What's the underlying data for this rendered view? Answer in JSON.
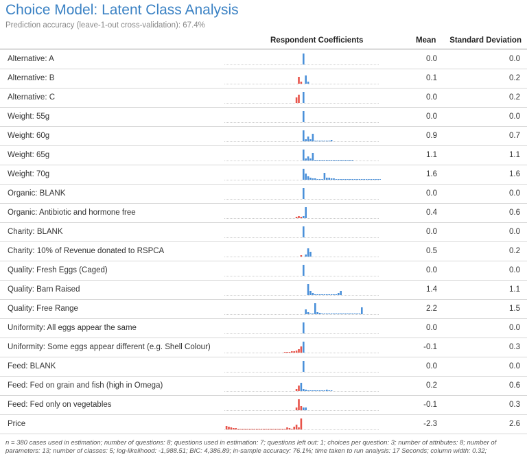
{
  "title": "Choice Model: Latent Class Analysis",
  "subtitle": "Prediction accuracy (leave-1-out cross-validation): 67.4%",
  "headers": {
    "coefficients": "Respondent Coefficients",
    "mean": "Mean",
    "sd": "Standard Deviation"
  },
  "colors": {
    "positive": "#4a90d9",
    "negative": "#e8534a",
    "title": "#3b82c4"
  },
  "rows": [
    {
      "label": "Alternative: A",
      "mean": "0.0",
      "sd": "0.0",
      "bars": [],
      "zero_spike": 16
    },
    {
      "label": "Alternative: B",
      "mean": "0.1",
      "sd": "0.2",
      "neg": [
        [
          -2,
          10
        ],
        [
          -1,
          3
        ]
      ],
      "pos": [
        [
          1,
          12
        ],
        [
          2,
          3
        ]
      ],
      "zero_spike": 0
    },
    {
      "label": "Alternative: C",
      "mean": "0.0",
      "sd": "0.2",
      "neg": [
        [
          -3,
          8
        ],
        [
          -2,
          12
        ]
      ],
      "pos": [
        [
          0,
          16
        ]
      ],
      "zero_spike": 0
    },
    {
      "label": "Weight: 55g",
      "mean": "0.0",
      "sd": "0.0",
      "zero_spike": 16
    },
    {
      "label": "Weight: 60g",
      "mean": "0.9",
      "sd": "0.7",
      "pos": [
        [
          0,
          16
        ],
        [
          1,
          3
        ],
        [
          2,
          7
        ],
        [
          3,
          3
        ],
        [
          4,
          11
        ],
        [
          5,
          1
        ],
        [
          6,
          1
        ],
        [
          7,
          1
        ],
        [
          8,
          1
        ],
        [
          9,
          1
        ],
        [
          10,
          1
        ],
        [
          11,
          1
        ],
        [
          12,
          2
        ]
      ]
    },
    {
      "label": "Weight: 65g",
      "mean": "1.1",
      "sd": "1.1",
      "pos": [
        [
          0,
          16
        ],
        [
          1,
          3
        ],
        [
          2,
          6
        ],
        [
          3,
          3
        ],
        [
          4,
          11
        ],
        [
          5,
          1
        ],
        [
          6,
          1
        ],
        [
          7,
          1
        ],
        [
          8,
          1
        ],
        [
          9,
          1
        ],
        [
          10,
          1
        ],
        [
          11,
          1
        ],
        [
          12,
          1
        ],
        [
          13,
          1
        ],
        [
          14,
          1
        ],
        [
          15,
          1
        ],
        [
          16,
          1
        ],
        [
          17,
          1
        ],
        [
          18,
          1
        ],
        [
          19,
          1
        ],
        [
          20,
          1
        ],
        [
          21,
          1
        ]
      ]
    },
    {
      "label": "Weight: 70g",
      "mean": "1.6",
      "sd": "1.6",
      "pos": [
        [
          0,
          16
        ],
        [
          1,
          9
        ],
        [
          2,
          5
        ],
        [
          3,
          3
        ],
        [
          4,
          2
        ],
        [
          5,
          2
        ],
        [
          6,
          1
        ],
        [
          7,
          1
        ],
        [
          8,
          1
        ],
        [
          9,
          10
        ],
        [
          10,
          3
        ],
        [
          11,
          3
        ],
        [
          12,
          2
        ],
        [
          13,
          2
        ],
        [
          14,
          1
        ],
        [
          15,
          1
        ],
        [
          16,
          1
        ],
        [
          17,
          1
        ],
        [
          18,
          1
        ],
        [
          19,
          1
        ],
        [
          20,
          1
        ],
        [
          21,
          1
        ],
        [
          22,
          1
        ],
        [
          23,
          1
        ],
        [
          24,
          1
        ],
        [
          25,
          1
        ],
        [
          26,
          1
        ],
        [
          27,
          1
        ],
        [
          28,
          1
        ],
        [
          29,
          1
        ],
        [
          30,
          1
        ],
        [
          31,
          1
        ],
        [
          32,
          1
        ],
        [
          33,
          1
        ],
        [
          34,
          1
        ],
        [
          35,
          1
        ],
        [
          36,
          1
        ],
        [
          37,
          1
        ],
        [
          38,
          1
        ],
        [
          39,
          1
        ],
        [
          40,
          1
        ],
        [
          41,
          1
        ],
        [
          42,
          1
        ],
        [
          43,
          1
        ],
        [
          44,
          1
        ],
        [
          45,
          1
        ],
        [
          46,
          1
        ],
        [
          47,
          1
        ],
        [
          48,
          1
        ],
        [
          49,
          1
        ],
        [
          50,
          1
        ],
        [
          51,
          1
        ],
        [
          52,
          1
        ],
        [
          53,
          3
        ]
      ]
    },
    {
      "label": "Organic: BLANK",
      "mean": "0.0",
      "sd": "0.0",
      "zero_spike": 16
    },
    {
      "label": "Organic: Antibiotic and hormone free",
      "mean": "0.4",
      "sd": "0.6",
      "neg": [
        [
          -3,
          2
        ],
        [
          -2,
          3
        ],
        [
          -1,
          2
        ]
      ],
      "pos": [
        [
          0,
          3
        ],
        [
          1,
          16
        ]
      ]
    },
    {
      "label": "Charity: BLANK",
      "mean": "0.0",
      "sd": "0.0",
      "zero_spike": 16
    },
    {
      "label": "Charity: 10% of Revenue donated to RSPCA",
      "mean": "0.5",
      "sd": "0.2",
      "neg": [
        [
          -1,
          2
        ]
      ],
      "pos": [
        [
          1,
          3
        ],
        [
          2,
          12
        ],
        [
          3,
          7
        ]
      ]
    },
    {
      "label": "Quality: Fresh Eggs (Caged)",
      "mean": "0.0",
      "sd": "0.0",
      "zero_spike": 16
    },
    {
      "label": "Quality: Barn Raised",
      "mean": "1.4",
      "sd": "1.1",
      "pos": [
        [
          2,
          16
        ],
        [
          3,
          6
        ],
        [
          4,
          3
        ],
        [
          5,
          1
        ],
        [
          6,
          1
        ],
        [
          7,
          1
        ],
        [
          8,
          1
        ],
        [
          9,
          1
        ],
        [
          10,
          1
        ],
        [
          11,
          1
        ],
        [
          12,
          1
        ],
        [
          13,
          1
        ],
        [
          14,
          1
        ],
        [
          15,
          3
        ],
        [
          16,
          6
        ]
      ]
    },
    {
      "label": "Quality: Free Range",
      "mean": "2.2",
      "sd": "1.5",
      "pos": [
        [
          1,
          7
        ],
        [
          2,
          3
        ],
        [
          3,
          1
        ],
        [
          4,
          1
        ],
        [
          5,
          16
        ],
        [
          6,
          3
        ],
        [
          7,
          2
        ],
        [
          8,
          1
        ],
        [
          9,
          1
        ],
        [
          10,
          1
        ],
        [
          11,
          1
        ],
        [
          12,
          1
        ],
        [
          13,
          1
        ],
        [
          14,
          1
        ],
        [
          15,
          1
        ],
        [
          16,
          1
        ],
        [
          17,
          1
        ],
        [
          18,
          1
        ],
        [
          19,
          1
        ],
        [
          20,
          1
        ],
        [
          21,
          1
        ],
        [
          22,
          1
        ],
        [
          23,
          1
        ],
        [
          24,
          1
        ],
        [
          25,
          10
        ]
      ]
    },
    {
      "label": "Uniformity: All eggs appear the same",
      "mean": "0.0",
      "sd": "0.0",
      "zero_spike": 16
    },
    {
      "label": "Uniformity: Some eggs appear different (e.g. Shell Colour)",
      "mean": "-0.1",
      "sd": "0.3",
      "neg": [
        [
          -8,
          1
        ],
        [
          -7,
          1
        ],
        [
          -6,
          1
        ],
        [
          -5,
          2
        ],
        [
          -4,
          2
        ],
        [
          -3,
          3
        ],
        [
          -2,
          5
        ],
        [
          -1,
          9
        ]
      ],
      "pos": [
        [
          0,
          16
        ]
      ]
    },
    {
      "label": "Feed: BLANK",
      "mean": "0.0",
      "sd": "0.0",
      "zero_spike": 16
    },
    {
      "label": "Feed: Fed on grain and fish (high in Omega)",
      "mean": "0.2",
      "sd": "0.6",
      "neg": [
        [
          -3,
          3
        ],
        [
          -2,
          8
        ]
      ],
      "pos": [
        [
          -1,
          12
        ],
        [
          0,
          3
        ],
        [
          1,
          2
        ],
        [
          2,
          1
        ],
        [
          3,
          1
        ],
        [
          4,
          1
        ],
        [
          5,
          1
        ],
        [
          6,
          1
        ],
        [
          7,
          1
        ],
        [
          8,
          1
        ],
        [
          9,
          1
        ],
        [
          10,
          2
        ],
        [
          11,
          1
        ],
        [
          12,
          1
        ]
      ]
    },
    {
      "label": "Feed: Fed only on vegetables",
      "mean": "-0.1",
      "sd": "0.3",
      "neg": [
        [
          -3,
          4
        ],
        [
          -2,
          16
        ],
        [
          -1,
          6
        ]
      ],
      "pos": [
        [
          0,
          4
        ],
        [
          1,
          4
        ]
      ]
    },
    {
      "label": "Price",
      "mean": "-2.3",
      "sd": "2.6",
      "neg": [
        [
          -33,
          5
        ],
        [
          -32,
          4
        ],
        [
          -31,
          3
        ],
        [
          -30,
          2
        ],
        [
          -29,
          2
        ],
        [
          -28,
          1
        ],
        [
          -27,
          1
        ],
        [
          -26,
          1
        ],
        [
          -25,
          1
        ],
        [
          -24,
          1
        ],
        [
          -23,
          1
        ],
        [
          -22,
          1
        ],
        [
          -21,
          1
        ],
        [
          -20,
          1
        ],
        [
          -19,
          1
        ],
        [
          -18,
          1
        ],
        [
          -17,
          1
        ],
        [
          -16,
          1
        ],
        [
          -15,
          1
        ],
        [
          -14,
          1
        ],
        [
          -13,
          1
        ],
        [
          -12,
          1
        ],
        [
          -11,
          1
        ],
        [
          -10,
          1
        ],
        [
          -9,
          1
        ],
        [
          -8,
          1
        ],
        [
          -7,
          3
        ],
        [
          -6,
          2
        ],
        [
          -5,
          1
        ],
        [
          -4,
          4
        ],
        [
          -3,
          7
        ],
        [
          -2,
          3
        ],
        [
          -1,
          16
        ]
      ]
    }
  ],
  "footer": "n = 380 cases used in estimation; number of questions: 8; questions used in estimation: 7; questions left out: 1; choices per question: 3; number of attributes: 8; number of parameters: 13; number of classes: 5; log-likelihood: -1,988.51; BIC: 4,386.89; in-sample accuracy: 76.1%; time taken to run analysis: 17 Seconds; column width: 0.32;"
}
